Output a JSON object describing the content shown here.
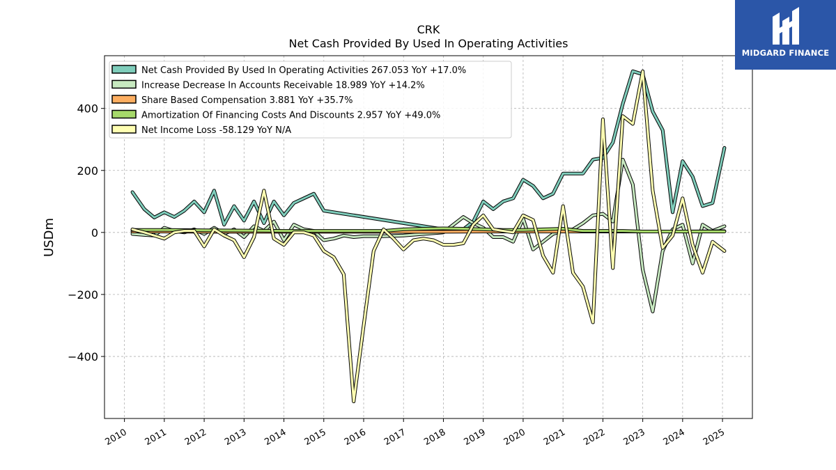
{
  "chart_data": {
    "type": "line",
    "title": "CRK",
    "subtitle": "Net Cash Provided By Used In Operating Activities",
    "ylabel": "USDm",
    "xlabel": "",
    "ylim": [
      -600,
      570
    ],
    "xlim": [
      2009.5,
      2025.75
    ],
    "yticks": [
      400,
      200,
      0,
      -200,
      -400
    ],
    "ytick_labels": [
      "400",
      "200",
      "0",
      "−200",
      "−400"
    ],
    "xticks": [
      2010,
      2011,
      2012,
      2013,
      2014,
      2015,
      2016,
      2017,
      2018,
      2019,
      2020,
      2021,
      2022,
      2023,
      2024,
      2025
    ],
    "xtick_labels": [
      "2010",
      "2011",
      "2012",
      "2013",
      "2014",
      "2015",
      "2016",
      "2017",
      "2018",
      "2019",
      "2020",
      "2021",
      "2022",
      "2023",
      "2024",
      "2025"
    ],
    "grid": true,
    "legend_position": "top-left",
    "series": [
      {
        "name": "Net Cash Provided By Used In Operating Activities",
        "legend_label": "Net Cash Provided By Used In Operating Activities  267.053 YoY +17.0%",
        "color": "#7fcdbb",
        "points": [
          [
            2010.2,
            130
          ],
          [
            2010.5,
            75
          ],
          [
            2010.75,
            48
          ],
          [
            2011.0,
            65
          ],
          [
            2011.25,
            50
          ],
          [
            2011.5,
            70
          ],
          [
            2011.75,
            100
          ],
          [
            2012.0,
            65
          ],
          [
            2012.25,
            135
          ],
          [
            2012.5,
            25
          ],
          [
            2012.75,
            85
          ],
          [
            2013.0,
            38
          ],
          [
            2013.25,
            100
          ],
          [
            2013.5,
            30
          ],
          [
            2013.75,
            100
          ],
          [
            2014.0,
            55
          ],
          [
            2014.25,
            95
          ],
          [
            2014.5,
            110
          ],
          [
            2014.75,
            125
          ],
          [
            2015.0,
            70
          ],
          [
            2018.25,
            5
          ],
          [
            2018.5,
            10
          ],
          [
            2018.75,
            35
          ],
          [
            2019.0,
            100
          ],
          [
            2019.25,
            75
          ],
          [
            2019.5,
            100
          ],
          [
            2019.75,
            110
          ],
          [
            2020.0,
            170
          ],
          [
            2020.25,
            150
          ],
          [
            2020.5,
            110
          ],
          [
            2020.75,
            125
          ],
          [
            2021.0,
            190
          ],
          [
            2021.25,
            190
          ],
          [
            2021.5,
            190
          ],
          [
            2021.75,
            235
          ],
          [
            2022.0,
            240
          ],
          [
            2022.25,
            290
          ],
          [
            2022.5,
            415
          ],
          [
            2022.75,
            520
          ],
          [
            2023.0,
            510
          ],
          [
            2023.25,
            390
          ],
          [
            2023.5,
            330
          ],
          [
            2023.75,
            65
          ],
          [
            2024.0,
            230
          ],
          [
            2024.25,
            180
          ],
          [
            2024.5,
            85
          ],
          [
            2024.75,
            95
          ],
          [
            2025.05,
            273
          ]
        ]
      },
      {
        "name": "Increase Decrease In Accounts Receivable",
        "legend_label": "Increase Decrease In Accounts Receivable  18.989 YoY +14.2%",
        "color": "#c7e9c0",
        "points": [
          [
            2010.2,
            -5
          ],
          [
            2010.5,
            -8
          ],
          [
            2010.75,
            -10
          ],
          [
            2011.0,
            15
          ],
          [
            2011.25,
            5
          ],
          [
            2011.5,
            0
          ],
          [
            2011.75,
            10
          ],
          [
            2012.0,
            -5
          ],
          [
            2012.25,
            15
          ],
          [
            2012.5,
            -5
          ],
          [
            2012.75,
            10
          ],
          [
            2013.0,
            -15
          ],
          [
            2013.25,
            20
          ],
          [
            2013.5,
            5
          ],
          [
            2013.75,
            35
          ],
          [
            2014.0,
            -25
          ],
          [
            2014.25,
            25
          ],
          [
            2014.5,
            10
          ],
          [
            2014.75,
            5
          ],
          [
            2015.0,
            -25
          ],
          [
            2015.25,
            -20
          ],
          [
            2015.5,
            -10
          ],
          [
            2015.75,
            -15
          ],
          [
            2016.0,
            -12
          ],
          [
            2016.5,
            -12
          ],
          [
            2017.0,
            -10
          ],
          [
            2017.5,
            -5
          ],
          [
            2018.0,
            0
          ],
          [
            2018.5,
            50
          ],
          [
            2018.75,
            30
          ],
          [
            2019.0,
            15
          ],
          [
            2019.25,
            -15
          ],
          [
            2019.5,
            -15
          ],
          [
            2019.75,
            -30
          ],
          [
            2020.0,
            45
          ],
          [
            2020.25,
            -55
          ],
          [
            2020.5,
            -30
          ],
          [
            2020.75,
            -5
          ],
          [
            2021.0,
            5
          ],
          [
            2021.25,
            10
          ],
          [
            2021.5,
            30
          ],
          [
            2021.75,
            55
          ],
          [
            2022.0,
            60
          ],
          [
            2022.25,
            35
          ],
          [
            2022.5,
            235
          ],
          [
            2022.75,
            155
          ],
          [
            2023.0,
            -120
          ],
          [
            2023.25,
            -255
          ],
          [
            2023.5,
            -60
          ],
          [
            2023.75,
            10
          ],
          [
            2024.0,
            25
          ],
          [
            2024.25,
            -100
          ],
          [
            2024.5,
            25
          ],
          [
            2024.75,
            5
          ],
          [
            2025.05,
            20
          ]
        ]
      },
      {
        "name": "Share Based Compensation",
        "legend_label": "Share Based Compensation  3.881 YoY +35.7%",
        "color": "#fdae61",
        "points": [
          [
            2010.2,
            3
          ],
          [
            2011.0,
            3
          ],
          [
            2012.0,
            2
          ],
          [
            2013.0,
            2
          ],
          [
            2014.0,
            2
          ],
          [
            2015.0,
            2
          ],
          [
            2016.0,
            2
          ],
          [
            2017.0,
            2
          ],
          [
            2018.0,
            2
          ],
          [
            2019.0,
            3
          ],
          [
            2020.0,
            3
          ],
          [
            2021.0,
            3
          ],
          [
            2022.0,
            3
          ],
          [
            2023.0,
            3
          ],
          [
            2024.0,
            3
          ],
          [
            2025.05,
            4
          ]
        ]
      },
      {
        "name": "Amortization Of Financing Costs And Discounts",
        "legend_label": "Amortization Of Financing Costs And Discounts  2.957 YoY +49.0%",
        "color": "#a6d96a",
        "points": [
          [
            2010.2,
            8
          ],
          [
            2011.0,
            8
          ],
          [
            2012.0,
            7
          ],
          [
            2013.0,
            6
          ],
          [
            2014.0,
            5
          ],
          [
            2015.0,
            5
          ],
          [
            2016.0,
            5
          ],
          [
            2016.5,
            5
          ],
          [
            2017.0,
            10
          ],
          [
            2017.5,
            12
          ],
          [
            2018.0,
            13
          ],
          [
            2018.5,
            12
          ],
          [
            2019.0,
            10
          ],
          [
            2019.5,
            8
          ],
          [
            2020.0,
            8
          ],
          [
            2020.5,
            10
          ],
          [
            2021.0,
            12
          ],
          [
            2021.5,
            5
          ],
          [
            2022.0,
            5
          ],
          [
            2022.5,
            5
          ],
          [
            2023.0,
            3
          ],
          [
            2023.5,
            3
          ],
          [
            2024.0,
            3
          ],
          [
            2024.5,
            3
          ],
          [
            2025.05,
            3
          ]
        ]
      },
      {
        "name": "Net Income Loss",
        "legend_label": "Net Income Loss  -58.129 YoY N/A",
        "color": "#ffffb2",
        "points": [
          [
            2010.2,
            10
          ],
          [
            2010.5,
            0
          ],
          [
            2010.75,
            -10
          ],
          [
            2011.0,
            -20
          ],
          [
            2011.25,
            0
          ],
          [
            2011.5,
            5
          ],
          [
            2011.75,
            5
          ],
          [
            2012.0,
            -45
          ],
          [
            2012.25,
            10
          ],
          [
            2012.5,
            -10
          ],
          [
            2012.75,
            -25
          ],
          [
            2013.0,
            -80
          ],
          [
            2013.25,
            -15
          ],
          [
            2013.5,
            135
          ],
          [
            2013.75,
            -20
          ],
          [
            2014.0,
            -40
          ],
          [
            2014.25,
            0
          ],
          [
            2014.5,
            0
          ],
          [
            2014.75,
            -10
          ],
          [
            2015.0,
            -60
          ],
          [
            2015.25,
            -80
          ],
          [
            2015.5,
            -135
          ],
          [
            2015.75,
            -545
          ],
          [
            2016.0,
            -300
          ],
          [
            2016.25,
            -60
          ],
          [
            2016.5,
            10
          ],
          [
            2016.75,
            -20
          ],
          [
            2017.0,
            -55
          ],
          [
            2017.25,
            -25
          ],
          [
            2017.5,
            -20
          ],
          [
            2017.75,
            -25
          ],
          [
            2018.0,
            -40
          ],
          [
            2018.25,
            -40
          ],
          [
            2018.5,
            -35
          ],
          [
            2018.75,
            25
          ],
          [
            2019.0,
            55
          ],
          [
            2019.25,
            10
          ],
          [
            2019.5,
            5
          ],
          [
            2019.75,
            0
          ],
          [
            2020.0,
            55
          ],
          [
            2020.25,
            40
          ],
          [
            2020.5,
            -75
          ],
          [
            2020.75,
            -130
          ],
          [
            2021.0,
            85
          ],
          [
            2021.25,
            -130
          ],
          [
            2021.5,
            -175
          ],
          [
            2021.75,
            -290
          ],
          [
            2022.0,
            365
          ],
          [
            2022.25,
            -115
          ],
          [
            2022.5,
            375
          ],
          [
            2022.75,
            350
          ],
          [
            2023.0,
            520
          ],
          [
            2023.25,
            135
          ],
          [
            2023.5,
            -50
          ],
          [
            2023.75,
            -10
          ],
          [
            2024.0,
            110
          ],
          [
            2024.25,
            -40
          ],
          [
            2024.5,
            -130
          ],
          [
            2024.75,
            -30
          ],
          [
            2025.05,
            -60
          ]
        ]
      }
    ]
  },
  "branding": {
    "name": "MIDGARD FINANCE",
    "bg_color": "#2b56a8"
  }
}
